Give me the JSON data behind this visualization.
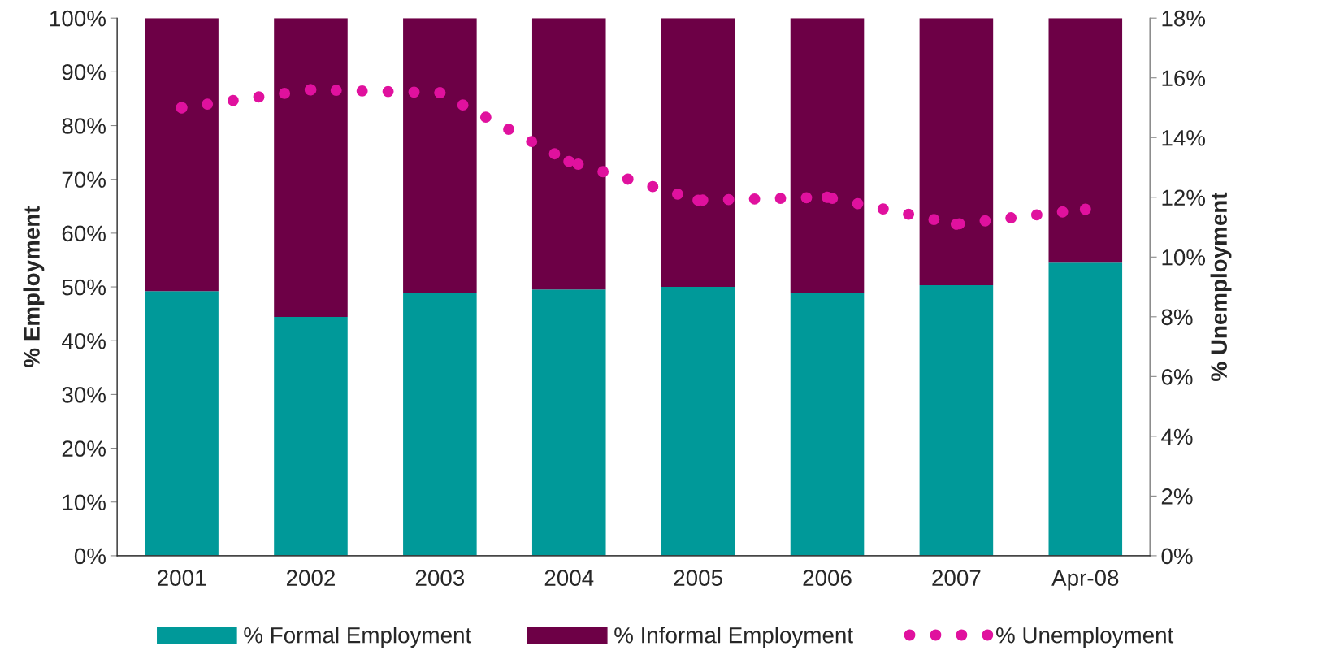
{
  "chart_data": {
    "type": "bar",
    "stacked": true,
    "categories": [
      "2001",
      "2002",
      "2003",
      "2004",
      "2005",
      "2006",
      "2007",
      "Apr-08"
    ],
    "ylabel": "% Employment",
    "y2label": "% Unemployment",
    "ylim": [
      0,
      100
    ],
    "yticks": [
      {
        "value": 0,
        "label": "0%"
      },
      {
        "value": 10,
        "label": "10%"
      },
      {
        "value": 20,
        "label": "20%"
      },
      {
        "value": 30,
        "label": "30%"
      },
      {
        "value": 40,
        "label": "40%"
      },
      {
        "value": 50,
        "label": "50%"
      },
      {
        "value": 60,
        "label": "60%"
      },
      {
        "value": 70,
        "label": "70%"
      },
      {
        "value": 80,
        "label": "80%"
      },
      {
        "value": 90,
        "label": "90%"
      },
      {
        "value": 100,
        "label": "100%"
      }
    ],
    "y2lim": [
      0,
      18
    ],
    "y2ticks": [
      {
        "value": 0,
        "label": "0%"
      },
      {
        "value": 2,
        "label": "2%"
      },
      {
        "value": 4,
        "label": "4%"
      },
      {
        "value": 6,
        "label": "6%"
      },
      {
        "value": 8,
        "label": "8%"
      },
      {
        "value": 10,
        "label": "10%"
      },
      {
        "value": 12,
        "label": "12%"
      },
      {
        "value": 14,
        "label": "14%"
      },
      {
        "value": 16,
        "label": "16%"
      },
      {
        "value": 18,
        "label": "18%"
      }
    ],
    "series": [
      {
        "name": "% Formal Employment",
        "color": "#009999",
        "values": [
          49.2,
          44.4,
          48.9,
          49.5,
          50.0,
          48.9,
          50.3,
          54.5
        ]
      },
      {
        "name": "% Informal Employment",
        "color": "#6d0046",
        "values": [
          50.8,
          55.6,
          51.1,
          50.5,
          50.0,
          51.1,
          49.7,
          45.5
        ]
      },
      {
        "name": "% Unemployment",
        "type": "line",
        "axis": "y2",
        "color": "#e0119e",
        "line_style": "dotted",
        "marker": "circle",
        "values": [
          15.0,
          15.6,
          15.5,
          13.2,
          11.9,
          12.0,
          11.1,
          11.6
        ]
      }
    ],
    "legend": "bottom",
    "grid": false
  }
}
